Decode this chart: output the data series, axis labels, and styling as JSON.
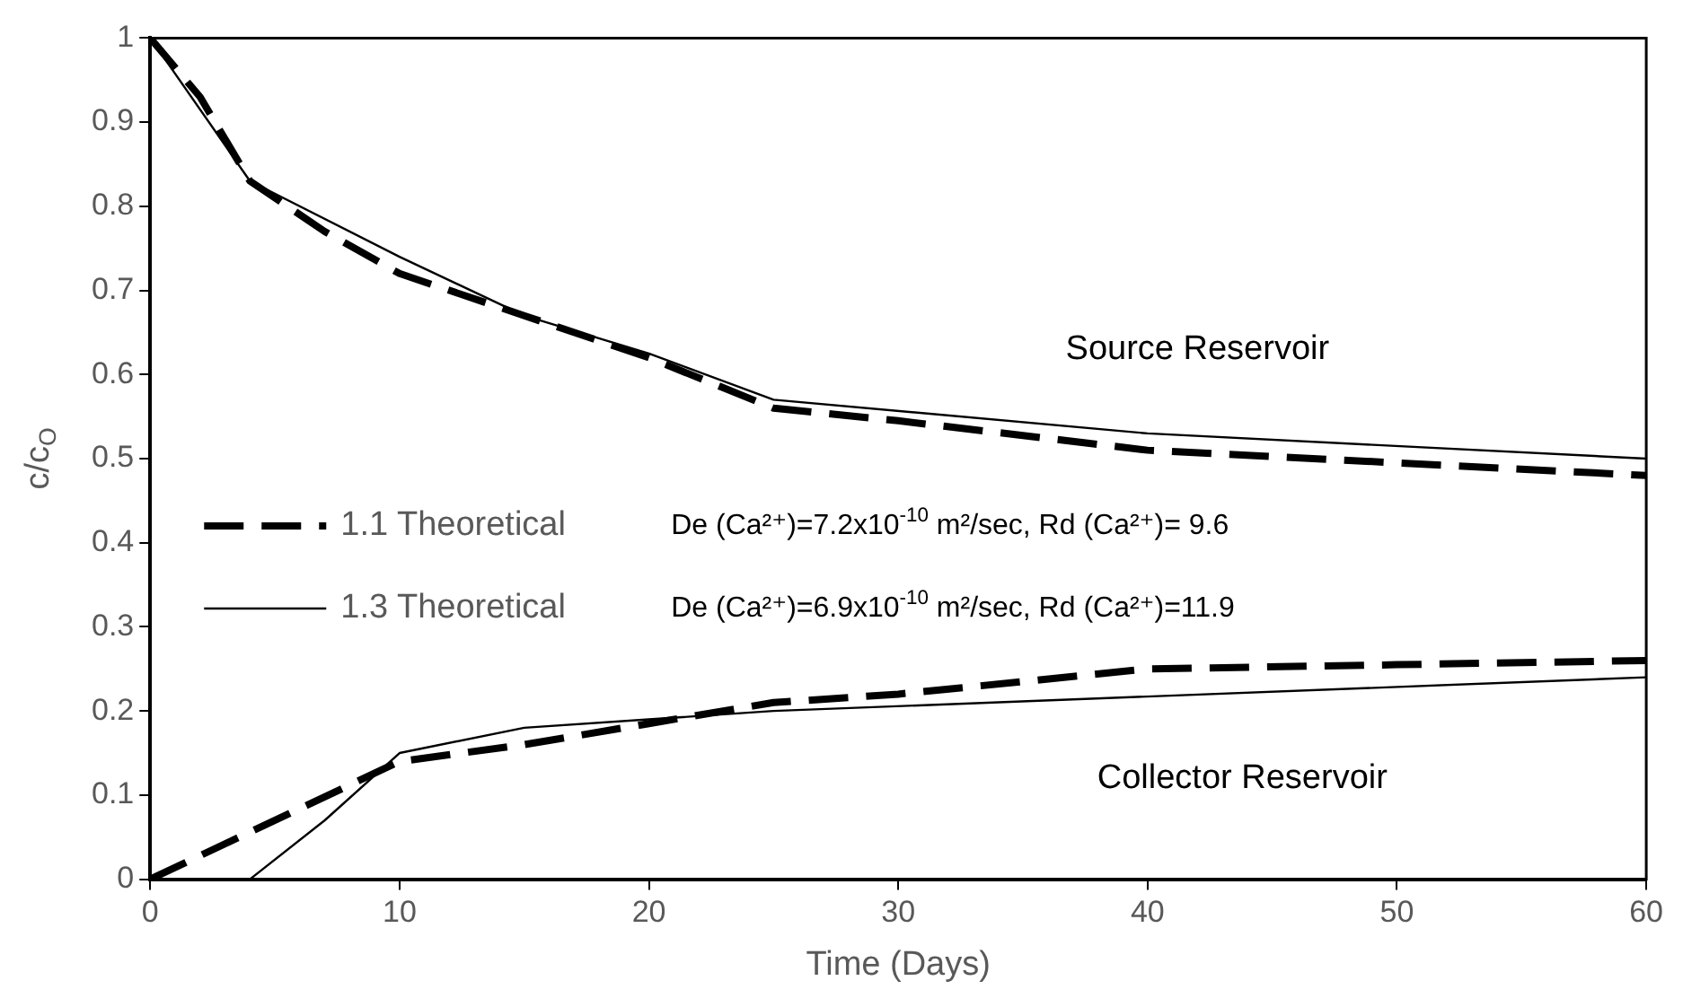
{
  "chart_data": {
    "type": "line",
    "xlabel": "Time (Days)",
    "ylabel": "c/c$_{O}$",
    "xlim": [
      0,
      60
    ],
    "xticks": [
      0,
      10,
      20,
      30,
      40,
      50,
      60
    ],
    "ylim": [
      0,
      1
    ],
    "yticks": [
      0,
      0.1,
      0.2,
      0.3,
      0.4,
      0.5,
      0.6,
      0.7,
      0.8,
      0.9,
      1
    ],
    "grid": false,
    "legend": "left",
    "marker": "none",
    "series": [
      {
        "name": "1.1 Theoretical",
        "color": "#000000",
        "line_style": "dashed",
        "x": [
          0,
          2,
          4,
          7,
          10,
          15,
          20,
          25,
          30,
          40,
          50,
          60
        ],
        "values": [
          1,
          0.93,
          0.83,
          0.77,
          0.72,
          0.67,
          0.62,
          0.56,
          0.545,
          0.51,
          0.495,
          0.48
        ]
      },
      {
        "name": "1.3 Theoretical",
        "color": "#000000",
        "line_style": "solid",
        "x": [
          0,
          4,
          10,
          15,
          20,
          25,
          40,
          60
        ],
        "values": [
          1,
          0.83,
          0.74,
          0.67,
          0.625,
          0.57,
          0.53,
          0.5
        ]
      },
      {
        "color": "#000000",
        "line_style": "dashed",
        "x": [
          0,
          10,
          15,
          20,
          25,
          30,
          40,
          50,
          60
        ],
        "values": [
          0,
          0.14,
          0.16,
          0.185,
          0.21,
          0.22,
          0.25,
          0.255,
          0.26
        ]
      },
      {
        "color": "#000000",
        "line_style": "solid",
        "x": [
          4,
          7,
          10,
          15,
          20,
          25,
          60
        ],
        "values": [
          0,
          0.07,
          0.15,
          0.18,
          0.19,
          0.2,
          0.24
        ]
      }
    ],
    "annotations": [
      "Source Reservoir",
      "Collector Reservoir",
      "De (Ca²⁺)=7.2x10$^{-10}$ m²/sec, Rd (Ca²⁺)= 9.6",
      "De (Ca²⁺)=6.9x10$^{-10}$ m²/sec, Rd (Ca²⁺)=11.9"
    ]
  }
}
